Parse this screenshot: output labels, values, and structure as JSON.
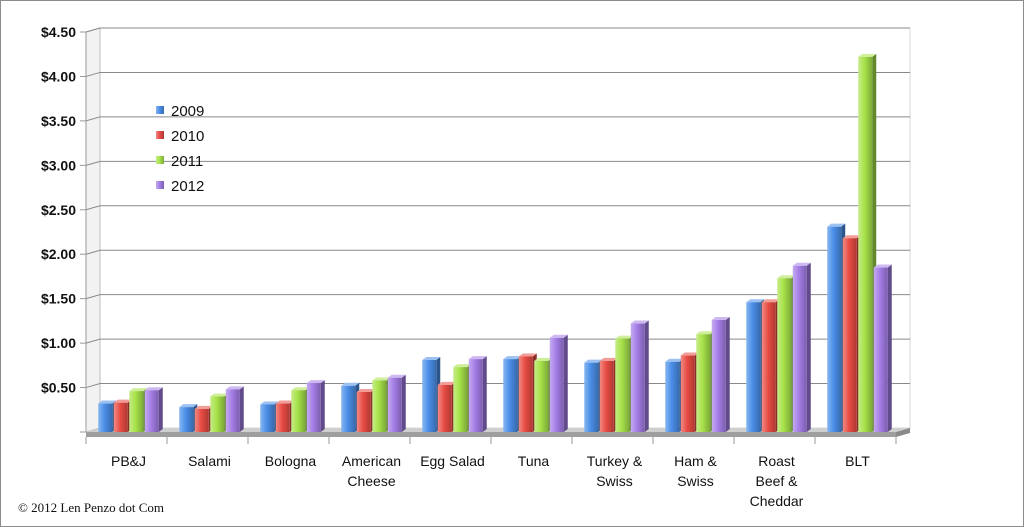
{
  "chart_data": {
    "type": "bar",
    "title": "",
    "xlabel": "",
    "ylabel": "",
    "ylim": [
      0,
      4.5
    ],
    "grid": true,
    "legend_position": "top-left",
    "y_ticks": [
      "$0.50",
      "$1.00",
      "$1.50",
      "$2.00",
      "$2.50",
      "$3.00",
      "$3.50",
      "$4.00",
      "$4.50"
    ],
    "y_tick_values": [
      0.5,
      1.0,
      1.5,
      2.0,
      2.5,
      3.0,
      3.5,
      4.0,
      4.5
    ],
    "categories": [
      [
        "PB&J"
      ],
      [
        "Salami"
      ],
      [
        "Bologna"
      ],
      [
        "American",
        "Cheese"
      ],
      [
        "Egg Salad"
      ],
      [
        "Tuna"
      ],
      [
        "Turkey &",
        "Swiss"
      ],
      [
        "Ham &",
        "Swiss"
      ],
      [
        "Roast",
        "Beef &",
        "Cheddar"
      ],
      [
        "BLT"
      ]
    ],
    "series": [
      {
        "name": "2009",
        "color": "#4a8ee8",
        "values": [
          0.32,
          0.28,
          0.31,
          0.52,
          0.81,
          0.82,
          0.78,
          0.79,
          1.46,
          2.31
        ]
      },
      {
        "name": "2010",
        "color": "#e84c44",
        "values": [
          0.33,
          0.26,
          0.32,
          0.45,
          0.53,
          0.85,
          0.8,
          0.86,
          1.46,
          2.18
        ]
      },
      {
        "name": "2011",
        "color": "#a7e24a",
        "values": [
          0.46,
          0.4,
          0.47,
          0.58,
          0.73,
          0.8,
          1.05,
          1.1,
          1.73,
          4.22
        ]
      },
      {
        "name": "2012",
        "color": "#a47de6",
        "values": [
          0.47,
          0.48,
          0.55,
          0.61,
          0.82,
          1.06,
          1.22,
          1.26,
          1.87,
          1.85
        ]
      }
    ]
  },
  "footer": {
    "copyright": "© 2012 Len Penzo dot Com"
  }
}
